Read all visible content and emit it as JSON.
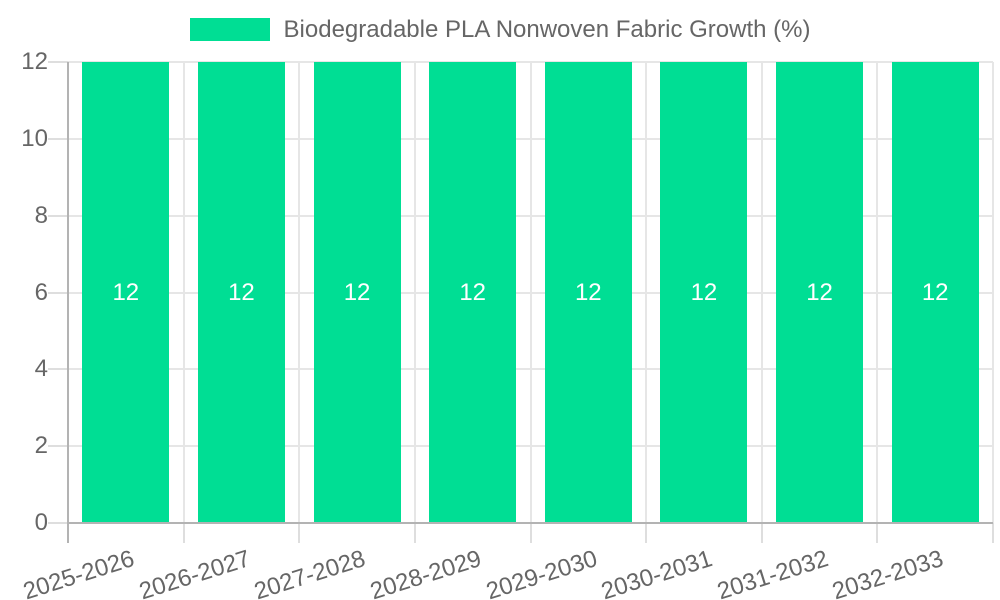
{
  "legend": {
    "label": "Biodegradable PLA Nonwoven Fabric Growth (%)",
    "position": "top"
  },
  "chart_data": {
    "type": "bar",
    "title": "Biodegradable PLA Nonwoven Fabric Growth (%)",
    "categories": [
      "2025-2026",
      "2026-2027",
      "2027-2028",
      "2028-2029",
      "2029-2030",
      "2030-2031",
      "2031-2032",
      "2032-2033"
    ],
    "series": [
      {
        "name": "Biodegradable PLA Nonwoven Fabric Growth (%)",
        "values": [
          12,
          12,
          12,
          12,
          12,
          12,
          12,
          12
        ],
        "color": "#00DE94"
      }
    ],
    "value_labels": [
      "12",
      "12",
      "12",
      "12",
      "12",
      "12",
      "12",
      "12"
    ],
    "value_labels_position": "center",
    "xlabel": "",
    "ylabel": "",
    "ylim": [
      0,
      12
    ],
    "yticks": [
      0,
      2,
      4,
      6,
      8,
      10,
      12
    ],
    "grid": true,
    "legend_position": "top",
    "x_tick_rotation_deg": -17.5
  },
  "colors": {
    "bar": "#00DE94",
    "grid_line": "#E6E6E6",
    "tick_mark": "#DEDEDE",
    "axis_line": "#B3B3B3",
    "label_text": "#666666",
    "bar_value_text": "#FFFFFF",
    "background": "#FFFFFF"
  }
}
